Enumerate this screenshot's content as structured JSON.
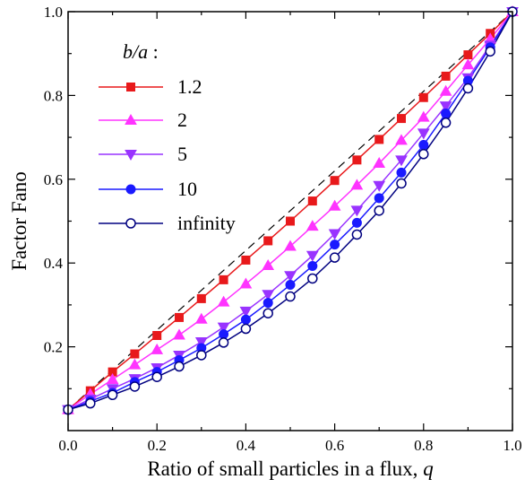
{
  "chart_data": {
    "type": "line",
    "xlabel": "Ratio of small particles in a flux,",
    "xlabel_var": "q",
    "ylabel": "Factor Fano",
    "xlim": [
      0.0,
      1.0
    ],
    "ylim": [
      0.0,
      1.0
    ],
    "xticks": [
      0.0,
      0.2,
      0.4,
      0.6,
      0.8,
      1.0
    ],
    "xtick_labels": [
      "0.0",
      "0.2",
      "0.4",
      "0.6",
      "0.8",
      "1.0"
    ],
    "yticks": [
      0.2,
      0.4,
      0.6,
      0.8,
      1.0
    ],
    "ytick_labels": [
      "0.2",
      "0.4",
      "0.6",
      "0.8",
      "1.0"
    ],
    "grid": false,
    "legend_placement": "top-left",
    "legend_title": "b/a :",
    "x": [
      0.0,
      0.05,
      0.1,
      0.15,
      0.2,
      0.25,
      0.3,
      0.35,
      0.4,
      0.45,
      0.5,
      0.55,
      0.6,
      0.65,
      0.7,
      0.75,
      0.8,
      0.85,
      0.9,
      0.95,
      1.0
    ],
    "reference_line": {
      "style": "dashed",
      "x": [
        0.0,
        1.0
      ],
      "y": [
        0.05,
        1.0
      ]
    },
    "series": [
      {
        "name": "1.2",
        "color": "#e8191b",
        "marker": "square",
        "filled": true,
        "values": [
          0.05,
          0.095,
          0.14,
          0.183,
          0.227,
          0.27,
          0.315,
          0.36,
          0.407,
          0.453,
          0.5,
          0.548,
          0.597,
          0.646,
          0.695,
          0.745,
          0.795,
          0.846,
          0.897,
          0.948,
          1.0
        ]
      },
      {
        "name": "2",
        "color": "#ff33ff",
        "marker": "triangle-up",
        "filled": true,
        "values": [
          0.05,
          0.087,
          0.122,
          0.157,
          0.193,
          0.228,
          0.266,
          0.307,
          0.35,
          0.394,
          0.44,
          0.488,
          0.536,
          0.586,
          0.638,
          0.693,
          0.748,
          0.81,
          0.873,
          0.935,
          1.0
        ]
      },
      {
        "name": "5",
        "color": "#9933ff",
        "marker": "triangle-down",
        "filled": true,
        "values": [
          0.05,
          0.075,
          0.1,
          0.124,
          0.15,
          0.18,
          0.212,
          0.247,
          0.285,
          0.325,
          0.37,
          0.418,
          0.47,
          0.526,
          0.585,
          0.646,
          0.71,
          0.775,
          0.842,
          0.92,
          1.0
        ]
      },
      {
        "name": "10",
        "color": "#1a1aff",
        "marker": "circle",
        "filled": true,
        "values": [
          0.05,
          0.07,
          0.09,
          0.116,
          0.14,
          0.168,
          0.197,
          0.23,
          0.265,
          0.305,
          0.348,
          0.393,
          0.444,
          0.496,
          0.555,
          0.616,
          0.682,
          0.757,
          0.835,
          0.915,
          1.0
        ]
      },
      {
        "name": "infinity",
        "color": "#000080",
        "marker": "circle",
        "filled": false,
        "values": [
          0.05,
          0.065,
          0.085,
          0.105,
          0.128,
          0.153,
          0.18,
          0.21,
          0.243,
          0.28,
          0.32,
          0.363,
          0.413,
          0.468,
          0.525,
          0.59,
          0.66,
          0.735,
          0.817,
          0.905,
          1.0
        ]
      }
    ]
  }
}
